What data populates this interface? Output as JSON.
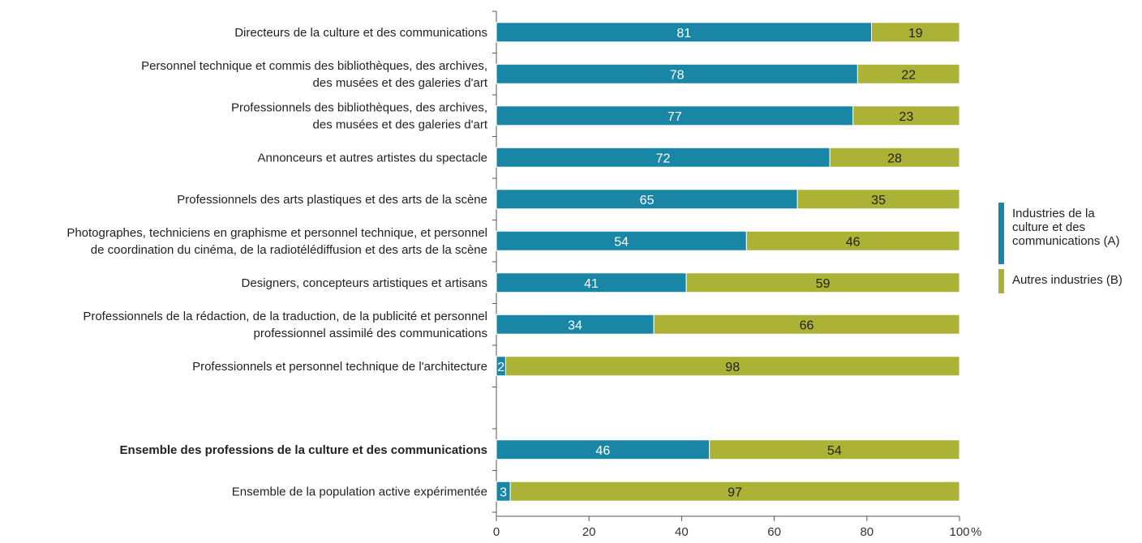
{
  "chart_data": {
    "type": "bar",
    "orientation": "horizontal",
    "stacked": true,
    "unit": "%",
    "xlim": [
      0,
      100
    ],
    "x_ticks": [
      0,
      20,
      40,
      60,
      80,
      100
    ],
    "x_tick_labels": [
      "0",
      "20",
      "40",
      "60",
      "80",
      "100"
    ],
    "x_unit_label": "%",
    "grid": false,
    "legend_position": "right",
    "categories": [
      {
        "label": [
          "Directeurs de la culture et des communications"
        ],
        "bold": false
      },
      {
        "label": [
          "Personnel technique et commis des bibliothèques, des archives,",
          "des musées et des galeries d'art"
        ],
        "bold": false
      },
      {
        "label": [
          "Professionnels des bibliothèques, des archives,",
          "des musées et des galeries d'art"
        ],
        "bold": false
      },
      {
        "label": [
          "Annonceurs et autres artistes du spectacle"
        ],
        "bold": false
      },
      {
        "label": [
          "Professionnels des arts plastiques et des arts de la scène"
        ],
        "bold": false
      },
      {
        "label": [
          "Photographes, techniciens en graphisme et personnel technique, et personnel",
          "de coordination du cinéma, de la radiotélédiffusion et des arts de la scène"
        ],
        "bold": false
      },
      {
        "label": [
          "Designers, concepteurs artistiques et artisans"
        ],
        "bold": false
      },
      {
        "label": [
          "Professionnels de la rédaction, de la traduction, de la publicité et personnel",
          "professionnel assimilé des communications"
        ],
        "bold": false
      },
      {
        "label": [
          "Professionnels et personnel technique de l'architecture"
        ],
        "bold": false
      },
      {
        "label": [],
        "bold": false
      },
      {
        "label": [
          "Ensemble des professions de la culture et des communications"
        ],
        "bold": true
      },
      {
        "label": [
          "Ensemble de la population active expérimentée"
        ],
        "bold": false
      }
    ],
    "series": [
      {
        "name": "Industries de la culture et des communications (A)",
        "legend_lines": [
          "Industries de la",
          "culture et des",
          "communications (A)"
        ],
        "color": "#1a86a6",
        "label_color": "#ffffff",
        "values": [
          81,
          78,
          77,
          72,
          65,
          54,
          41,
          34,
          2,
          null,
          46,
          3
        ],
        "labels": [
          "81",
          "78",
          "77",
          "72",
          "65",
          "54",
          "41",
          "34",
          "2",
          "",
          "46",
          "3"
        ]
      },
      {
        "name": "Autres industries (B)",
        "legend_lines": [
          "Autres industries (B)"
        ],
        "color": "#abb236",
        "label_color": "#222222",
        "values": [
          19,
          22,
          23,
          28,
          35,
          46,
          59,
          66,
          98,
          null,
          54,
          97
        ],
        "labels": [
          "19",
          "22",
          "23",
          "28",
          "35",
          "46",
          "59",
          "66",
          "98",
          "",
          "54",
          "97"
        ]
      }
    ]
  }
}
